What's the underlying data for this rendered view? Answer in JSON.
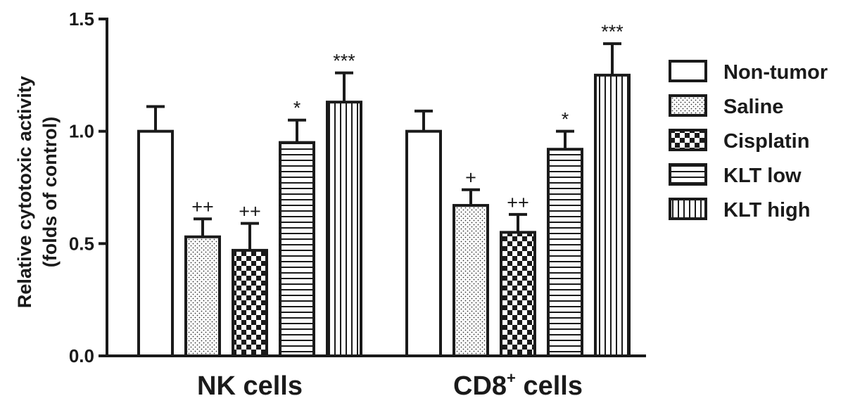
{
  "chart_data": {
    "type": "bar",
    "ylabel": "Relative cytotoxic activity",
    "ylabel_line2": "(folds of control)",
    "ylim": [
      0,
      1.5
    ],
    "yticks": [
      "0.0",
      "0.5",
      "1.0",
      "1.5"
    ],
    "ytick_values": [
      0,
      0.5,
      1.0,
      1.5
    ],
    "grid": false,
    "legend_position": "right",
    "categories": [
      {
        "label": "NK cells",
        "sup": ""
      },
      {
        "label_main": "CD8",
        "sup": "+",
        "label_tail": " cells"
      }
    ],
    "category_labels": [
      "NK cells",
      "CD8+ cells"
    ],
    "series": [
      {
        "name": "Non-tumor",
        "pattern": "plain",
        "values": [
          1.0,
          1.0
        ],
        "errors": [
          0.11,
          0.09
        ],
        "annotations": [
          "",
          ""
        ]
      },
      {
        "name": "Saline",
        "pattern": "dots",
        "values": [
          0.53,
          0.67
        ],
        "errors": [
          0.08,
          0.07
        ],
        "annotations": [
          "++",
          "+"
        ]
      },
      {
        "name": "Cisplatin",
        "pattern": "checker",
        "values": [
          0.47,
          0.55
        ],
        "errors": [
          0.12,
          0.08
        ],
        "annotations": [
          "++",
          "++"
        ]
      },
      {
        "name": "KLT low",
        "pattern": "horizontal",
        "values": [
          0.95,
          0.92
        ],
        "errors": [
          0.1,
          0.08
        ],
        "annotations": [
          "*",
          "*"
        ]
      },
      {
        "name": "KLT high",
        "pattern": "vertical",
        "values": [
          1.13,
          1.25
        ],
        "errors": [
          0.13,
          0.14
        ],
        "annotations": [
          "***",
          "***"
        ]
      }
    ]
  }
}
